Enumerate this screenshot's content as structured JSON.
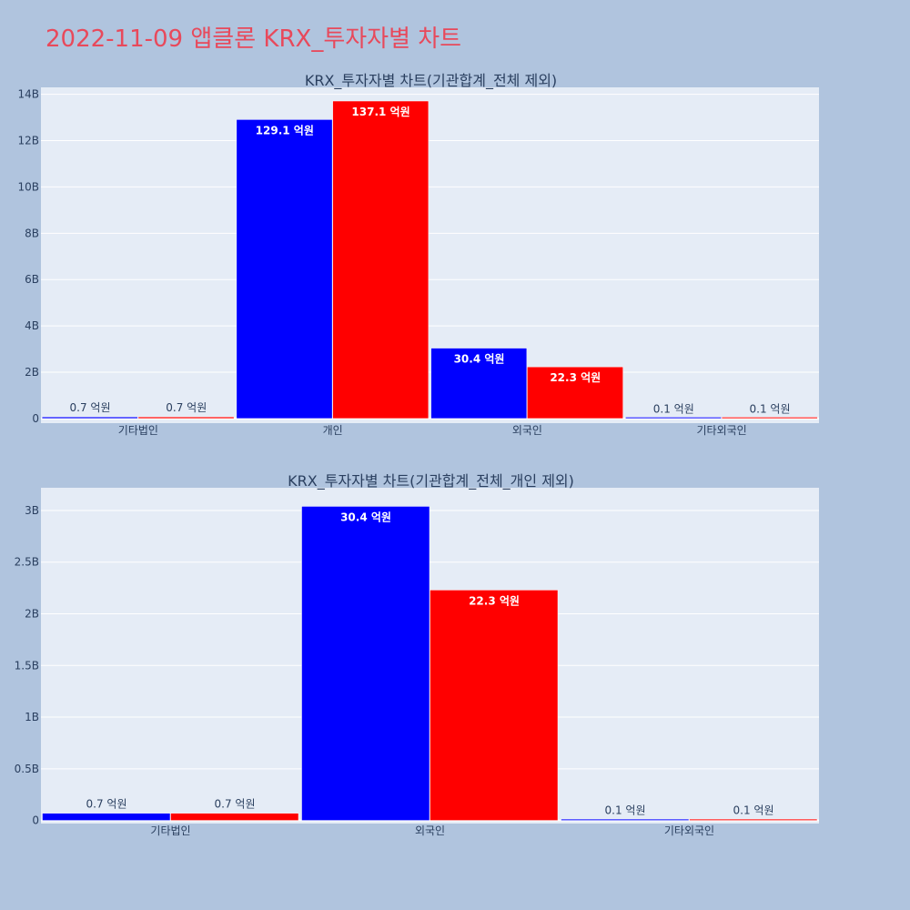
{
  "title": "2022-11-09 앱클론 KRX_투자자별 차트",
  "colors": {
    "buy": "#0000ff",
    "sell": "#ff0000",
    "plot_bg": "#e5ecf6",
    "page_bg": "#b0c4de",
    "title": "#e8495b"
  },
  "chart_data": [
    {
      "type": "bar",
      "title": "KRX_투자자별 차트(기관합계_전체 제외)",
      "categories": [
        "기타법인",
        "개인",
        "외국인",
        "기타외국인"
      ],
      "series": [
        {
          "color": "#0000ff",
          "values": [
            70000000,
            12910000000,
            3040000000,
            10000000
          ],
          "labels": [
            "0.7 억원",
            "129.1 억원",
            "30.4 억원",
            "0.1 억원"
          ]
        },
        {
          "color": "#ff0000",
          "values": [
            70000000,
            13710000000,
            2230000000,
            10000000
          ],
          "labels": [
            "0.7 억원",
            "137.1 억원",
            "22.3 억원",
            "0.1 억원"
          ]
        }
      ],
      "ylim": [
        -200000000,
        14300000000
      ],
      "yticks": [
        0,
        2000000000,
        4000000000,
        6000000000,
        8000000000,
        10000000000,
        12000000000,
        14000000000
      ],
      "ytick_labels": [
        "0",
        "2B",
        "4B",
        "6B",
        "8B",
        "10B",
        "12B",
        "14B"
      ],
      "grid": true,
      "legend": "none"
    },
    {
      "type": "bar",
      "title": "KRX_투자자별 차트(기관합계_전체_개인 제외)",
      "categories": [
        "기타법인",
        "외국인",
        "기타외국인"
      ],
      "series": [
        {
          "color": "#0000ff",
          "values": [
            70000000,
            3040000000,
            10000000
          ],
          "labels": [
            "0.7 억원",
            "30.4 억원",
            "0.1 억원"
          ]
        },
        {
          "color": "#ff0000",
          "values": [
            70000000,
            2230000000,
            10000000
          ],
          "labels": [
            "0.7 억원",
            "22.3 억원",
            "0.1 억원"
          ]
        }
      ],
      "ylim": [
        -30000000,
        3220000000
      ],
      "yticks": [
        0,
        500000000,
        1000000000,
        1500000000,
        2000000000,
        2500000000,
        3000000000
      ],
      "ytick_labels": [
        "0",
        "0.5B",
        "1B",
        "1.5B",
        "2B",
        "2.5B",
        "3B"
      ],
      "grid": true,
      "legend": "none"
    }
  ]
}
